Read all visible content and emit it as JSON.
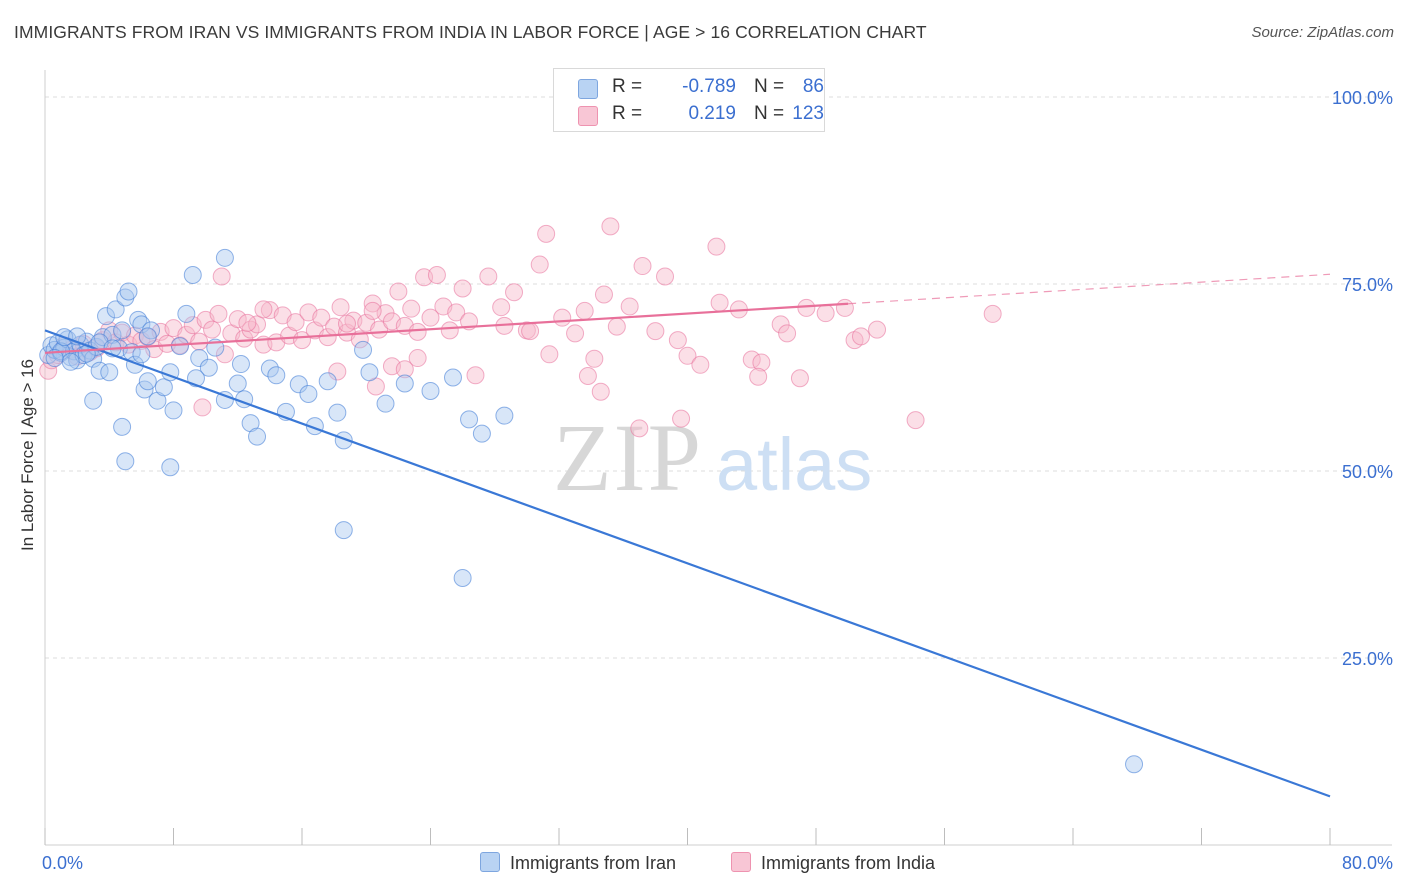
{
  "title": "IMMIGRANTS FROM IRAN VS IMMIGRANTS FROM INDIA IN LABOR FORCE | AGE > 16 CORRELATION CHART",
  "source": "Source: ZipAtlas.com",
  "watermark": {
    "zip": "ZIP",
    "atlas": "atlas"
  },
  "legend": {
    "r_label": "R =",
    "n_label": "N =",
    "rows": [
      {
        "r": "-0.789",
        "n": "86",
        "color": "#a8c8f0"
      },
      {
        "r": "0.219",
        "n": "123",
        "color": "#f6b7c9"
      }
    ]
  },
  "bottom_legend": [
    "Immigrants from Iran",
    "Immigrants from India"
  ],
  "chart_data": {
    "type": "scatter",
    "ylabel": "In Labor Force | Age > 16",
    "xlabel": "",
    "xlim": [
      0,
      80
    ],
    "ylim": [
      0,
      105
    ],
    "x_tick_labels": [
      "0.0%",
      "80.0%"
    ],
    "y_tick_labels": [
      "100.0%",
      "75.0%",
      "50.0%",
      "25.0%"
    ],
    "y_ticks": [
      100,
      75,
      50,
      25
    ],
    "grid": "horizontal dashed",
    "series": [
      {
        "name": "Immigrants from Iran",
        "color": "#3a78d6",
        "fill": "#a8c8f0",
        "trend": {
          "x0": 0,
          "y0": 68.8,
          "x1": 80,
          "y1": 6.5,
          "dashed_from": null
        },
        "points": [
          [
            0.2,
            65.5
          ],
          [
            0.4,
            66.8
          ],
          [
            0.6,
            66.2
          ],
          [
            0.8,
            67.1
          ],
          [
            1.0,
            65.8
          ],
          [
            1.2,
            66.5
          ],
          [
            1.4,
            67.6
          ],
          [
            1.6,
            65.2
          ],
          [
            1.8,
            66.0
          ],
          [
            2.0,
            64.8
          ],
          [
            2.2,
            66.9
          ],
          [
            2.4,
            65.5
          ],
          [
            2.6,
            67.3
          ],
          [
            2.8,
            66.1
          ],
          [
            3.0,
            65.0
          ],
          [
            3.2,
            66.6
          ],
          [
            3.4,
            63.4
          ],
          [
            3.6,
            67.9
          ],
          [
            3.8,
            70.7
          ],
          [
            4.0,
            63.2
          ],
          [
            4.2,
            68.2
          ],
          [
            4.4,
            71.6
          ],
          [
            4.6,
            66.4
          ],
          [
            4.8,
            68.8
          ],
          [
            5.0,
            73.2
          ],
          [
            5.2,
            74.0
          ],
          [
            5.4,
            65.9
          ],
          [
            5.6,
            64.2
          ],
          [
            5.8,
            70.2
          ],
          [
            6.0,
            69.6
          ],
          [
            6.2,
            60.9
          ],
          [
            6.4,
            62.0
          ],
          [
            6.6,
            68.8
          ],
          [
            7.0,
            59.4
          ],
          [
            7.4,
            61.2
          ],
          [
            7.8,
            63.2
          ],
          [
            8.0,
            58.1
          ],
          [
            8.4,
            66.7
          ],
          [
            8.8,
            71.0
          ],
          [
            9.2,
            76.2
          ],
          [
            9.6,
            65.1
          ],
          [
            10.2,
            63.8
          ],
          [
            10.6,
            66.5
          ],
          [
            11.2,
            59.5
          ],
          [
            12.0,
            61.7
          ],
          [
            12.4,
            59.6
          ],
          [
            12.8,
            56.4
          ],
          [
            13.2,
            54.6
          ],
          [
            14.0,
            63.7
          ],
          [
            14.4,
            62.8
          ],
          [
            15.0,
            57.9
          ],
          [
            15.8,
            61.6
          ],
          [
            16.4,
            60.3
          ],
          [
            16.8,
            56.0
          ],
          [
            17.6,
            62.0
          ],
          [
            18.2,
            57.8
          ],
          [
            18.6,
            54.1
          ],
          [
            19.8,
            66.2
          ],
          [
            20.2,
            63.2
          ],
          [
            21.2,
            59.0
          ],
          [
            22.4,
            61.7
          ],
          [
            24.0,
            60.7
          ],
          [
            25.4,
            62.5
          ],
          [
            26.4,
            56.9
          ],
          [
            27.2,
            55.0
          ],
          [
            28.6,
            57.4
          ],
          [
            11.2,
            78.5
          ],
          [
            6.4,
            68.0
          ],
          [
            3.0,
            59.4
          ],
          [
            4.8,
            55.9
          ],
          [
            5.0,
            51.3
          ],
          [
            7.8,
            50.5
          ],
          [
            9.4,
            62.4
          ],
          [
            12.2,
            64.3
          ],
          [
            1.0,
            66.0
          ],
          [
            1.6,
            64.6
          ],
          [
            2.6,
            65.7
          ],
          [
            3.4,
            67.2
          ],
          [
            0.6,
            65.1
          ],
          [
            1.2,
            67.9
          ],
          [
            18.6,
            42.1
          ],
          [
            26.0,
            35.7
          ],
          [
            67.8,
            10.8
          ],
          [
            2.0,
            68.0
          ],
          [
            4.2,
            66.4
          ],
          [
            6.0,
            65.6
          ]
        ]
      },
      {
        "name": "Immigrants from India",
        "color": "#e8709a",
        "fill": "#f6b7c9",
        "trend": {
          "x0": 0,
          "y0": 65.8,
          "x1": 80,
          "y1": 76.3,
          "dashed_from": 50
        },
        "points": [
          [
            0.2,
            63.4
          ],
          [
            0.4,
            64.8
          ],
          [
            0.8,
            65.5
          ],
          [
            1.2,
            66.8
          ],
          [
            1.6,
            66.2
          ],
          [
            2.0,
            65.3
          ],
          [
            2.4,
            67.0
          ],
          [
            2.8,
            65.9
          ],
          [
            3.2,
            66.4
          ],
          [
            3.6,
            67.5
          ],
          [
            4.0,
            68.8
          ],
          [
            4.4,
            67.2
          ],
          [
            4.8,
            68.5
          ],
          [
            5.2,
            66.9
          ],
          [
            5.6,
            68.1
          ],
          [
            6.0,
            67.4
          ],
          [
            6.4,
            67.9
          ],
          [
            6.8,
            66.3
          ],
          [
            7.2,
            68.6
          ],
          [
            7.6,
            67.0
          ],
          [
            8.0,
            69.1
          ],
          [
            8.4,
            66.8
          ],
          [
            8.8,
            68.2
          ],
          [
            9.2,
            69.5
          ],
          [
            9.6,
            67.3
          ],
          [
            10.0,
            70.2
          ],
          [
            10.4,
            68.9
          ],
          [
            10.8,
            71.0
          ],
          [
            11.2,
            65.6
          ],
          [
            11.6,
            68.4
          ],
          [
            12.0,
            70.3
          ],
          [
            12.4,
            67.7
          ],
          [
            12.8,
            68.9
          ],
          [
            13.2,
            69.6
          ],
          [
            13.6,
            66.9
          ],
          [
            14.0,
            71.5
          ],
          [
            14.4,
            67.2
          ],
          [
            14.8,
            70.8
          ],
          [
            15.2,
            68.1
          ],
          [
            15.6,
            69.9
          ],
          [
            16.0,
            67.5
          ],
          [
            16.4,
            71.2
          ],
          [
            16.8,
            68.8
          ],
          [
            17.2,
            70.5
          ],
          [
            17.6,
            67.9
          ],
          [
            18.0,
            69.3
          ],
          [
            18.4,
            71.9
          ],
          [
            18.8,
            68.5
          ],
          [
            19.2,
            70.1
          ],
          [
            19.6,
            67.6
          ],
          [
            20.0,
            69.8
          ],
          [
            20.4,
            72.4
          ],
          [
            20.8,
            68.9
          ],
          [
            21.2,
            71.1
          ],
          [
            21.6,
            70.0
          ],
          [
            22.0,
            74.0
          ],
          [
            22.4,
            69.4
          ],
          [
            22.8,
            71.7
          ],
          [
            23.2,
            68.6
          ],
          [
            23.6,
            75.9
          ],
          [
            24.0,
            70.5
          ],
          [
            24.4,
            76.2
          ],
          [
            24.8,
            72.0
          ],
          [
            25.2,
            68.8
          ],
          [
            25.6,
            71.2
          ],
          [
            26.0,
            74.4
          ],
          [
            26.4,
            70.0
          ],
          [
            26.8,
            62.8
          ],
          [
            27.6,
            76.0
          ],
          [
            28.6,
            69.4
          ],
          [
            29.2,
            73.9
          ],
          [
            30.0,
            68.8
          ],
          [
            30.8,
            77.6
          ],
          [
            31.4,
            65.6
          ],
          [
            32.2,
            70.5
          ],
          [
            33.0,
            68.4
          ],
          [
            33.6,
            71.4
          ],
          [
            34.2,
            65.0
          ],
          [
            34.8,
            73.6
          ],
          [
            35.6,
            69.3
          ],
          [
            36.4,
            72.0
          ],
          [
            37.2,
            77.4
          ],
          [
            38.0,
            68.7
          ],
          [
            38.6,
            76.0
          ],
          [
            39.4,
            67.5
          ],
          [
            40.0,
            65.4
          ],
          [
            40.8,
            64.2
          ],
          [
            42.0,
            72.5
          ],
          [
            43.2,
            71.6
          ],
          [
            44.0,
            64.9
          ],
          [
            44.6,
            64.5
          ],
          [
            45.8,
            69.6
          ],
          [
            46.2,
            68.4
          ],
          [
            47.4,
            71.8
          ],
          [
            48.6,
            71.1
          ],
          [
            49.8,
            71.8
          ],
          [
            50.4,
            67.5
          ],
          [
            51.8,
            68.9
          ],
          [
            11.0,
            76.0
          ],
          [
            13.6,
            71.6
          ],
          [
            18.8,
            69.7
          ],
          [
            20.4,
            71.4
          ],
          [
            21.6,
            64.0
          ],
          [
            22.4,
            63.6
          ],
          [
            23.2,
            65.1
          ],
          [
            28.4,
            71.9
          ],
          [
            30.2,
            68.7
          ],
          [
            33.8,
            62.7
          ],
          [
            34.6,
            60.6
          ],
          [
            37.0,
            55.7
          ],
          [
            39.6,
            57.0
          ],
          [
            44.4,
            62.6
          ],
          [
            47.0,
            62.4
          ],
          [
            50.8,
            68.0
          ],
          [
            54.2,
            56.8
          ],
          [
            59.0,
            71.0
          ],
          [
            12.6,
            69.8
          ],
          [
            9.8,
            58.5
          ],
          [
            18.2,
            63.3
          ],
          [
            20.6,
            61.3
          ],
          [
            35.2,
            82.7
          ],
          [
            41.8,
            80.0
          ],
          [
            31.2,
            81.7
          ]
        ]
      }
    ]
  }
}
